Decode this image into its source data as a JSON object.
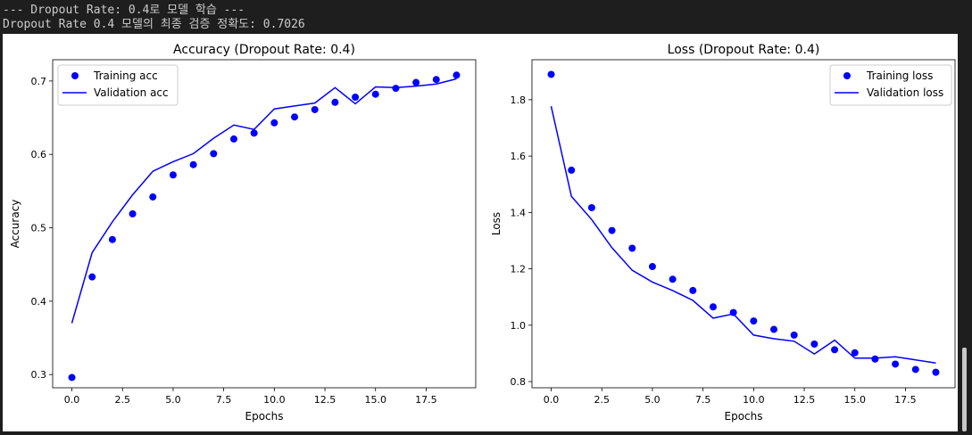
{
  "console": {
    "line1": "--- Dropout Rate: 0.4로 모델 학습 ---",
    "line2": "Dropout Rate 0.4 모델의 최종 검증 정확도: 0.7026"
  },
  "chart_data": [
    {
      "type": "line",
      "title": "Accuracy (Dropout Rate: 0.4)",
      "xlabel": "Epochs",
      "ylabel": "Accuracy",
      "xlim": [
        -0.95,
        19.95
      ],
      "ylim": [
        0.282,
        0.729
      ],
      "xticks": [
        0.0,
        2.5,
        5.0,
        7.5,
        10.0,
        12.5,
        15.0,
        17.5
      ],
      "xtick_labels": [
        "0.0",
        "2.5",
        "5.0",
        "7.5",
        "10.0",
        "12.5",
        "15.0",
        "17.5"
      ],
      "yticks": [
        0.3,
        0.4,
        0.5,
        0.6,
        0.7
      ],
      "ytick_labels": [
        "0.3",
        "0.4",
        "0.5",
        "0.6",
        "0.7"
      ],
      "legend_position": "top-left",
      "color": "#0000ff",
      "x": [
        0,
        1,
        2,
        3,
        4,
        5,
        6,
        7,
        8,
        9,
        10,
        11,
        12,
        13,
        14,
        15,
        16,
        17,
        18,
        19
      ],
      "series": [
        {
          "name": "Training acc",
          "style": "dots",
          "values": [
            0.296,
            0.433,
            0.484,
            0.519,
            0.542,
            0.572,
            0.586,
            0.601,
            0.621,
            0.629,
            0.643,
            0.651,
            0.661,
            0.671,
            0.678,
            0.682,
            0.69,
            0.698,
            0.702,
            0.708
          ]
        },
        {
          "name": "Validation acc",
          "style": "line",
          "values": [
            0.37,
            0.466,
            0.508,
            0.545,
            0.577,
            0.59,
            0.601,
            0.622,
            0.64,
            0.634,
            0.662,
            0.666,
            0.67,
            0.691,
            0.669,
            0.692,
            0.691,
            0.693,
            0.696,
            0.703
          ]
        }
      ]
    },
    {
      "type": "line",
      "title": "Loss (Dropout Rate: 0.4)",
      "xlabel": "Epochs",
      "ylabel": "Loss",
      "xlim": [
        -0.95,
        19.95
      ],
      "ylim": [
        0.778,
        1.942
      ],
      "xticks": [
        0.0,
        2.5,
        5.0,
        7.5,
        10.0,
        12.5,
        15.0,
        17.5
      ],
      "xtick_labels": [
        "0.0",
        "2.5",
        "5.0",
        "7.5",
        "10.0",
        "12.5",
        "15.0",
        "17.5"
      ],
      "yticks": [
        0.8,
        1.0,
        1.2,
        1.4,
        1.6,
        1.8
      ],
      "ytick_labels": [
        "0.8",
        "1.0",
        "1.2",
        "1.4",
        "1.6",
        "1.8"
      ],
      "legend_position": "top-right",
      "color": "#0000ff",
      "x": [
        0,
        1,
        2,
        3,
        4,
        5,
        6,
        7,
        8,
        9,
        10,
        11,
        12,
        13,
        14,
        15,
        16,
        17,
        18,
        19
      ],
      "series": [
        {
          "name": "Training loss",
          "style": "dots",
          "values": [
            1.89,
            1.55,
            1.417,
            1.336,
            1.273,
            1.208,
            1.163,
            1.123,
            1.065,
            1.045,
            1.015,
            0.985,
            0.965,
            0.933,
            0.913,
            0.902,
            0.88,
            0.862,
            0.843,
            0.833
          ]
        },
        {
          "name": "Validation loss",
          "style": "line",
          "values": [
            1.777,
            1.457,
            1.375,
            1.275,
            1.195,
            1.153,
            1.123,
            1.088,
            1.025,
            1.04,
            0.965,
            0.952,
            0.943,
            0.898,
            0.947,
            0.883,
            0.883,
            0.888,
            0.877,
            0.866
          ]
        }
      ]
    }
  ]
}
